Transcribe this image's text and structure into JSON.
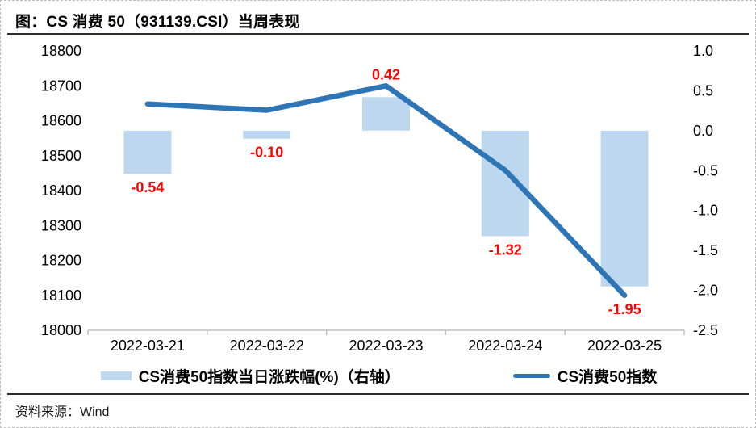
{
  "figure": {
    "title": "图：CS 消费 50（931139.CSI）当周表现",
    "source": "资料来源：Wind"
  },
  "legend": [
    {
      "label": "CS消费50指数当日涨跌幅(%)（右轴）",
      "swatch": "bar-swatch"
    },
    {
      "label": "CS消费50指数",
      "swatch": "line-swatch"
    }
  ],
  "colors": {
    "bar": "#BDD7EE",
    "line": "#2E75B6",
    "value_label": "#FF0000",
    "axis_line": "#BFBFBF",
    "rule": "#2A2E39",
    "text": "#000000"
  },
  "chart_data": {
    "type": "bar",
    "subtype": "bar+line combo, dual axis",
    "title": "图：CS 消费 50（931139.CSI）当周表现",
    "categories": [
      "2022-03-21",
      "2022-03-22",
      "2022-03-23",
      "2022-03-24",
      "2022-03-25"
    ],
    "series": [
      {
        "name": "CS消费50指数当日涨跌幅(%)（右轴）",
        "type": "bar",
        "axis": "right",
        "values": [
          -0.54,
          -0.1,
          0.42,
          -1.32,
          -1.95
        ],
        "labels": [
          "-0.54",
          "-0.10",
          "0.42",
          "-1.32",
          "-1.95"
        ]
      },
      {
        "name": "CS消费50指数",
        "type": "line",
        "axis": "left",
        "values": [
          18648,
          18630,
          18700,
          18458,
          18100
        ]
      }
    ],
    "left_axis": {
      "min": 18000,
      "max": 18800,
      "ticks": [
        "18800",
        "18700",
        "18600",
        "18500",
        "18400",
        "18300",
        "18200",
        "18100",
        "18000"
      ]
    },
    "right_axis": {
      "min": -2.5,
      "max": 1.0,
      "ticks": [
        "1.0",
        "0.5",
        "0.0",
        "-0.5",
        "-1.0",
        "-1.5",
        "-2.0",
        "-2.5"
      ]
    },
    "grid": false,
    "legend_position": "bottom"
  }
}
